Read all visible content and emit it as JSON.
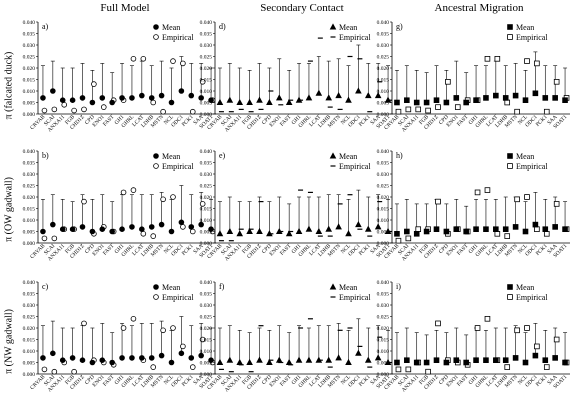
{
  "column_titles": [
    "Full Model",
    "Secondary Contact",
    "Ancestral Migration"
  ],
  "row_labels": [
    "π (falcated duck)",
    "π (OW gadwall)",
    "π (NW gadwall)"
  ],
  "chart_data": {
    "type": "scatter",
    "loci": [
      "CRYAB",
      "SCAI",
      "ANXA11",
      "FGB",
      "CHD1Z",
      "CPD",
      "ENO1",
      "FAST",
      "GH1",
      "GHRL",
      "LCAT",
      "LDHB",
      "MSTN",
      "NCL",
      "ODC1",
      "PCK1",
      "SAA",
      "SOAT1"
    ],
    "ylim": [
      0,
      0.04
    ],
    "yticks": [
      "0.000",
      "0.005",
      "0.010",
      "0.015",
      "0.020",
      "0.025",
      "0.030",
      "0.035",
      "0.040"
    ],
    "legend": [
      "Mean",
      "Empirical"
    ],
    "panels": [
      {
        "label": "a)",
        "row": 0,
        "col": 0,
        "marker": "circle",
        "mean": [
          0.007,
          0.01,
          0.006,
          0.006,
          0.007,
          0.005,
          0.007,
          0.005,
          0.007,
          0.007,
          0.008,
          0.007,
          0.008,
          0.005,
          0.01,
          0.008,
          0.007,
          0.006
        ],
        "upper": [
          0.021,
          0.023,
          0.02,
          0.02,
          0.022,
          0.019,
          0.022,
          0.018,
          0.022,
          0.021,
          0.023,
          0.021,
          0.023,
          0.02,
          0.025,
          0.022,
          0.022,
          0.02
        ],
        "empirical": [
          0.0015,
          0.002,
          0.004,
          0.0015,
          0.002,
          0.013,
          0.003,
          0.006,
          0.006,
          0.024,
          0.024,
          0.005,
          0.001,
          0.023,
          0.022,
          0.001,
          0.014,
          0.006
        ]
      },
      {
        "label": "d)",
        "row": 0,
        "col": 1,
        "marker": "triangle",
        "mean": [
          0.005,
          0.006,
          0.005,
          0.005,
          0.006,
          0.005,
          0.007,
          0.005,
          0.006,
          0.007,
          0.009,
          0.007,
          0.008,
          0.006,
          0.01,
          0.008,
          0.008,
          0.006
        ],
        "upper": [
          0.02,
          0.022,
          0.02,
          0.019,
          0.022,
          0.02,
          0.024,
          0.019,
          0.022,
          0.022,
          0.025,
          0.023,
          0.024,
          0.021,
          0.03,
          0.022,
          0.022,
          0.021
        ],
        "empirical": [
          0.001,
          0.001,
          0.002,
          0.001,
          0.002,
          0.01,
          0.004,
          0.006,
          0.006,
          0.023,
          0.033,
          0.003,
          0.002,
          0.025,
          0.024,
          0.001,
          0.014,
          0.006
        ]
      },
      {
        "label": "g)",
        "row": 0,
        "col": 2,
        "marker": "square",
        "mean": [
          0.005,
          0.006,
          0.005,
          0.005,
          0.006,
          0.005,
          0.007,
          0.005,
          0.006,
          0.007,
          0.008,
          0.007,
          0.008,
          0.006,
          0.009,
          0.007,
          0.007,
          0.006
        ],
        "upper": [
          0.019,
          0.021,
          0.019,
          0.018,
          0.021,
          0.019,
          0.023,
          0.018,
          0.021,
          0.021,
          0.023,
          0.021,
          0.022,
          0.019,
          0.027,
          0.021,
          0.021,
          0.02
        ],
        "empirical": [
          0.001,
          0.002,
          0.002,
          0.0015,
          0.003,
          0.014,
          0.003,
          0.006,
          0.006,
          0.024,
          0.024,
          0.005,
          0.001,
          0.023,
          0.022,
          0.001,
          0.014,
          0.007
        ]
      },
      {
        "label": "b)",
        "row": 1,
        "col": 0,
        "marker": "circle",
        "mean": [
          0.005,
          0.008,
          0.006,
          0.006,
          0.007,
          0.005,
          0.006,
          0.005,
          0.006,
          0.007,
          0.006,
          0.007,
          0.008,
          0.005,
          0.009,
          0.007,
          0.008,
          0.006
        ],
        "upper": [
          0.019,
          0.021,
          0.019,
          0.018,
          0.021,
          0.019,
          0.021,
          0.018,
          0.021,
          0.021,
          0.021,
          0.021,
          0.022,
          0.019,
          0.025,
          0.021,
          0.022,
          0.019
        ],
        "empirical": [
          0.002,
          0.002,
          0.006,
          0.006,
          0.018,
          0.004,
          0.007,
          0.005,
          0.022,
          0.023,
          0.004,
          0.003,
          0.019,
          0.02,
          0.007,
          0.005,
          0.017,
          0.005
        ]
      },
      {
        "label": "e)",
        "row": 1,
        "col": 1,
        "marker": "triangle",
        "mean": [
          0.004,
          0.005,
          0.004,
          0.005,
          0.005,
          0.004,
          0.005,
          0.004,
          0.005,
          0.006,
          0.005,
          0.006,
          0.007,
          0.004,
          0.008,
          0.006,
          0.007,
          0.005
        ],
        "upper": [
          0.018,
          0.02,
          0.018,
          0.018,
          0.02,
          0.018,
          0.02,
          0.017,
          0.02,
          0.02,
          0.02,
          0.021,
          0.021,
          0.019,
          0.023,
          0.02,
          0.021,
          0.019
        ],
        "empirical": [
          0.001,
          0.001,
          0.006,
          0.006,
          0.018,
          0.004,
          0.005,
          0.005,
          0.023,
          0.022,
          0.003,
          0.003,
          0.017,
          0.021,
          0.006,
          0.003,
          0.018,
          0.005
        ]
      },
      {
        "label": "h)",
        "row": 1,
        "col": 2,
        "marker": "square",
        "mean": [
          0.004,
          0.005,
          0.004,
          0.005,
          0.006,
          0.005,
          0.006,
          0.005,
          0.006,
          0.006,
          0.006,
          0.006,
          0.007,
          0.005,
          0.008,
          0.006,
          0.007,
          0.006
        ],
        "upper": [
          0.017,
          0.019,
          0.017,
          0.017,
          0.019,
          0.017,
          0.019,
          0.016,
          0.019,
          0.019,
          0.019,
          0.02,
          0.02,
          0.018,
          0.022,
          0.019,
          0.02,
          0.018
        ],
        "empirical": [
          0.001,
          0.002,
          0.006,
          0.006,
          0.018,
          0.004,
          0.006,
          0.005,
          0.022,
          0.023,
          0.004,
          0.003,
          0.019,
          0.02,
          0.006,
          0.004,
          0.017,
          0.006
        ]
      },
      {
        "label": "c)",
        "row": 2,
        "col": 0,
        "marker": "circle",
        "mean": [
          0.007,
          0.009,
          0.006,
          0.007,
          0.006,
          0.005,
          0.006,
          0.005,
          0.007,
          0.007,
          0.007,
          0.007,
          0.008,
          0.005,
          0.009,
          0.007,
          0.008,
          0.006
        ],
        "upper": [
          0.021,
          0.023,
          0.02,
          0.02,
          0.021,
          0.02,
          0.022,
          0.018,
          0.022,
          0.021,
          0.022,
          0.022,
          0.023,
          0.019,
          0.025,
          0.021,
          0.022,
          0.02
        ],
        "empirical": [
          0.002,
          0.001,
          0.005,
          0.001,
          0.022,
          0.006,
          0.005,
          0.004,
          0.02,
          0.024,
          0.006,
          0.003,
          0.019,
          0.02,
          0.012,
          0.003,
          0.015,
          0.005
        ]
      },
      {
        "label": "f)",
        "row": 2,
        "col": 1,
        "marker": "triangle",
        "mean": [
          0.005,
          0.006,
          0.005,
          0.005,
          0.006,
          0.005,
          0.006,
          0.005,
          0.006,
          0.006,
          0.006,
          0.006,
          0.007,
          0.005,
          0.009,
          0.006,
          0.007,
          0.005
        ],
        "upper": [
          0.02,
          0.021,
          0.019,
          0.018,
          0.02,
          0.019,
          0.021,
          0.018,
          0.021,
          0.02,
          0.021,
          0.021,
          0.022,
          0.019,
          0.024,
          0.02,
          0.021,
          0.019
        ],
        "empirical": [
          0.002,
          0.001,
          0.004,
          0.001,
          0.021,
          0.006,
          0.005,
          0.004,
          0.02,
          0.024,
          0.006,
          0.003,
          0.019,
          0.02,
          0.012,
          0.003,
          0.016,
          0.005
        ]
      },
      {
        "label": "i)",
        "row": 2,
        "col": 2,
        "marker": "square",
        "mean": [
          0.005,
          0.006,
          0.005,
          0.005,
          0.006,
          0.005,
          0.006,
          0.005,
          0.006,
          0.006,
          0.006,
          0.006,
          0.007,
          0.005,
          0.008,
          0.006,
          0.007,
          0.005
        ],
        "upper": [
          0.018,
          0.02,
          0.018,
          0.017,
          0.019,
          0.018,
          0.02,
          0.017,
          0.02,
          0.019,
          0.02,
          0.02,
          0.021,
          0.018,
          0.022,
          0.019,
          0.02,
          0.018
        ],
        "empirical": [
          0.002,
          0.002,
          0.005,
          0.001,
          0.022,
          0.006,
          0.005,
          0.004,
          0.02,
          0.024,
          0.006,
          0.003,
          0.019,
          0.02,
          0.012,
          0.003,
          0.015,
          0.005
        ]
      }
    ]
  }
}
